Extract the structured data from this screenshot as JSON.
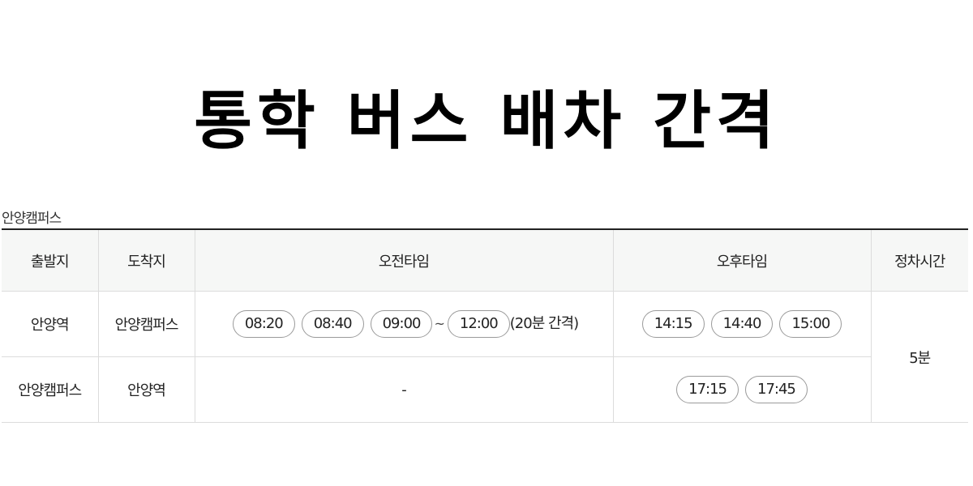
{
  "page": {
    "title": "통학 버스 배차 간격"
  },
  "campus": {
    "name": "안양캠퍼스"
  },
  "table": {
    "headers": {
      "departure": "출발지",
      "arrival": "도착지",
      "morning": "오전타임",
      "afternoon": "오후타임",
      "stop_time": "정차시간"
    },
    "rows": [
      {
        "departure": "안양역",
        "arrival": "안양캠퍼스",
        "morning": [
          "08:20",
          "08:40",
          "09:00",
          "12:00"
        ],
        "range_separator": "~",
        "interval_note": "(20분 간격)",
        "afternoon": [
          "14:15",
          "14:40",
          "15:00"
        ]
      },
      {
        "departure": "안양캠퍼스",
        "arrival": "안양역",
        "morning_empty": "-",
        "afternoon": [
          "17:15",
          "17:45"
        ]
      }
    ],
    "stop_time": "5분"
  }
}
